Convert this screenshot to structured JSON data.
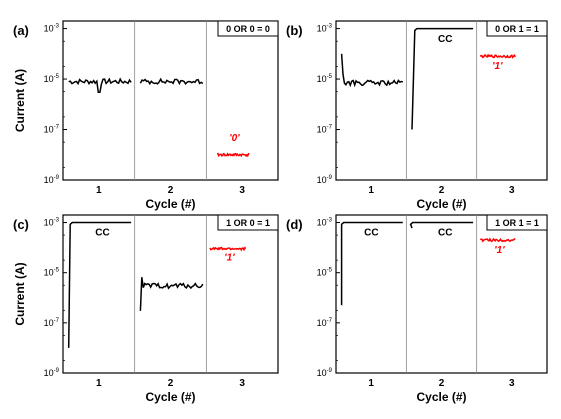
{
  "chart_data": [
    {
      "panel_label": "(a)",
      "type": "line",
      "logic_title": "0 OR 0 = 0",
      "ylabel": "Current (A)",
      "xlabel": "Cycle (#)",
      "yscale": "log",
      "ylim": [
        1e-09,
        0.002
      ],
      "y_ticks": [
        "-9",
        "-7",
        "-5",
        "-3"
      ],
      "x_ticks": [
        "1",
        "2",
        "3"
      ],
      "segments": [
        {
          "cycle": 1,
          "color": "#000000",
          "kind": "noisy",
          "level": 8e-06,
          "amp": 0.1,
          "dip_at": 0.5,
          "dip_level": 3e-06
        },
        {
          "cycle": 2,
          "color": "#000000",
          "kind": "noisy",
          "level": 8e-06,
          "amp": 0.1
        },
        {
          "cycle": 3,
          "color": "#ff0000",
          "kind": "noisy",
          "level": 1e-08,
          "amp": 0.05,
          "start": 0.15,
          "end": 0.6
        }
      ],
      "annotations": [
        {
          "text": "'0'",
          "cycle": 3,
          "pos": 0.32,
          "level": 3.5e-08,
          "color": "#ff0000",
          "italic": true
        }
      ]
    },
    {
      "panel_label": "(b)",
      "type": "line",
      "logic_title": "0 OR 1 = 1",
      "ylabel": "",
      "xlabel": "Cycle (#)",
      "yscale": "log",
      "ylim": [
        1e-09,
        0.002
      ],
      "y_ticks": [
        "-9",
        "-7",
        "-5",
        "-3"
      ],
      "x_ticks": [
        "1",
        "2",
        "3"
      ],
      "segments": [
        {
          "cycle": 1,
          "color": "#000000",
          "kind": "noisy",
          "level": 7e-06,
          "amp": 0.1,
          "spike_start": 0.0001
        },
        {
          "cycle": 2,
          "color": "#000000",
          "kind": "setramp",
          "from": 1e-07,
          "to": 0.001,
          "ramp_end": 0.12
        },
        {
          "cycle": 3,
          "color": "#ff0000",
          "kind": "noisy",
          "level": 8e-05,
          "amp": 0.05,
          "start": 0.05,
          "end": 0.55
        }
      ],
      "annotations": [
        {
          "text": "CC",
          "cycle": 2,
          "pos": 0.45,
          "level": 0.0003,
          "color": "#000000",
          "italic": false
        },
        {
          "text": "'1'",
          "cycle": 3,
          "pos": 0.22,
          "level": 2.5e-05,
          "color": "#ff0000",
          "italic": true
        }
      ]
    },
    {
      "panel_label": "(c)",
      "type": "line",
      "logic_title": "1 OR 0 = 1",
      "ylabel": "Current (A)",
      "xlabel": "Cycle (#)",
      "yscale": "log",
      "ylim": [
        1e-09,
        0.002
      ],
      "y_ticks": [
        "-9",
        "-7",
        "-5",
        "-3"
      ],
      "x_ticks": [
        "1",
        "2",
        "3"
      ],
      "segments": [
        {
          "cycle": 1,
          "color": "#000000",
          "kind": "setramp",
          "from": 1e-08,
          "to": 0.001,
          "ramp_end": 0.1
        },
        {
          "cycle": 2,
          "color": "#000000",
          "kind": "noisy",
          "level": 3e-06,
          "amp": 0.1,
          "spike_start": 3e-07
        },
        {
          "cycle": 3,
          "color": "#ff0000",
          "kind": "noisy",
          "level": 9e-05,
          "amp": 0.05,
          "start": 0.05,
          "end": 0.55
        }
      ],
      "annotations": [
        {
          "text": "CC",
          "cycle": 1,
          "pos": 0.45,
          "level": 0.0003,
          "color": "#000000",
          "italic": false
        },
        {
          "text": "'1'",
          "cycle": 3,
          "pos": 0.25,
          "level": 3e-05,
          "color": "#ff0000",
          "italic": true
        }
      ]
    },
    {
      "panel_label": "(d)",
      "type": "line",
      "logic_title": "1 OR 1 = 1",
      "ylabel": "",
      "xlabel": "Cycle (#)",
      "yscale": "log",
      "ylim": [
        1e-09,
        0.002
      ],
      "y_ticks": [
        "-9",
        "-7",
        "-5",
        "-3"
      ],
      "x_ticks": [
        "1",
        "2",
        "3"
      ],
      "segments": [
        {
          "cycle": 1,
          "color": "#000000",
          "kind": "setramp",
          "from": 5e-07,
          "to": 0.001,
          "ramp_end": 0.08
        },
        {
          "cycle": 2,
          "color": "#000000",
          "kind": "setramp",
          "from": 0.0006,
          "to": 0.001,
          "ramp_end": 0.06
        },
        {
          "cycle": 3,
          "color": "#ff0000",
          "kind": "noisy",
          "level": 0.0002,
          "amp": 0.05,
          "start": 0.05,
          "end": 0.55
        }
      ],
      "annotations": [
        {
          "text": "CC",
          "cycle": 1,
          "pos": 0.4,
          "level": 0.0003,
          "color": "#000000",
          "italic": false
        },
        {
          "text": "CC",
          "cycle": 2,
          "pos": 0.45,
          "level": 0.0003,
          "color": "#000000",
          "italic": false
        },
        {
          "text": "'1'",
          "cycle": 3,
          "pos": 0.25,
          "level": 6e-05,
          "color": "#ff0000",
          "italic": true
        }
      ]
    }
  ]
}
